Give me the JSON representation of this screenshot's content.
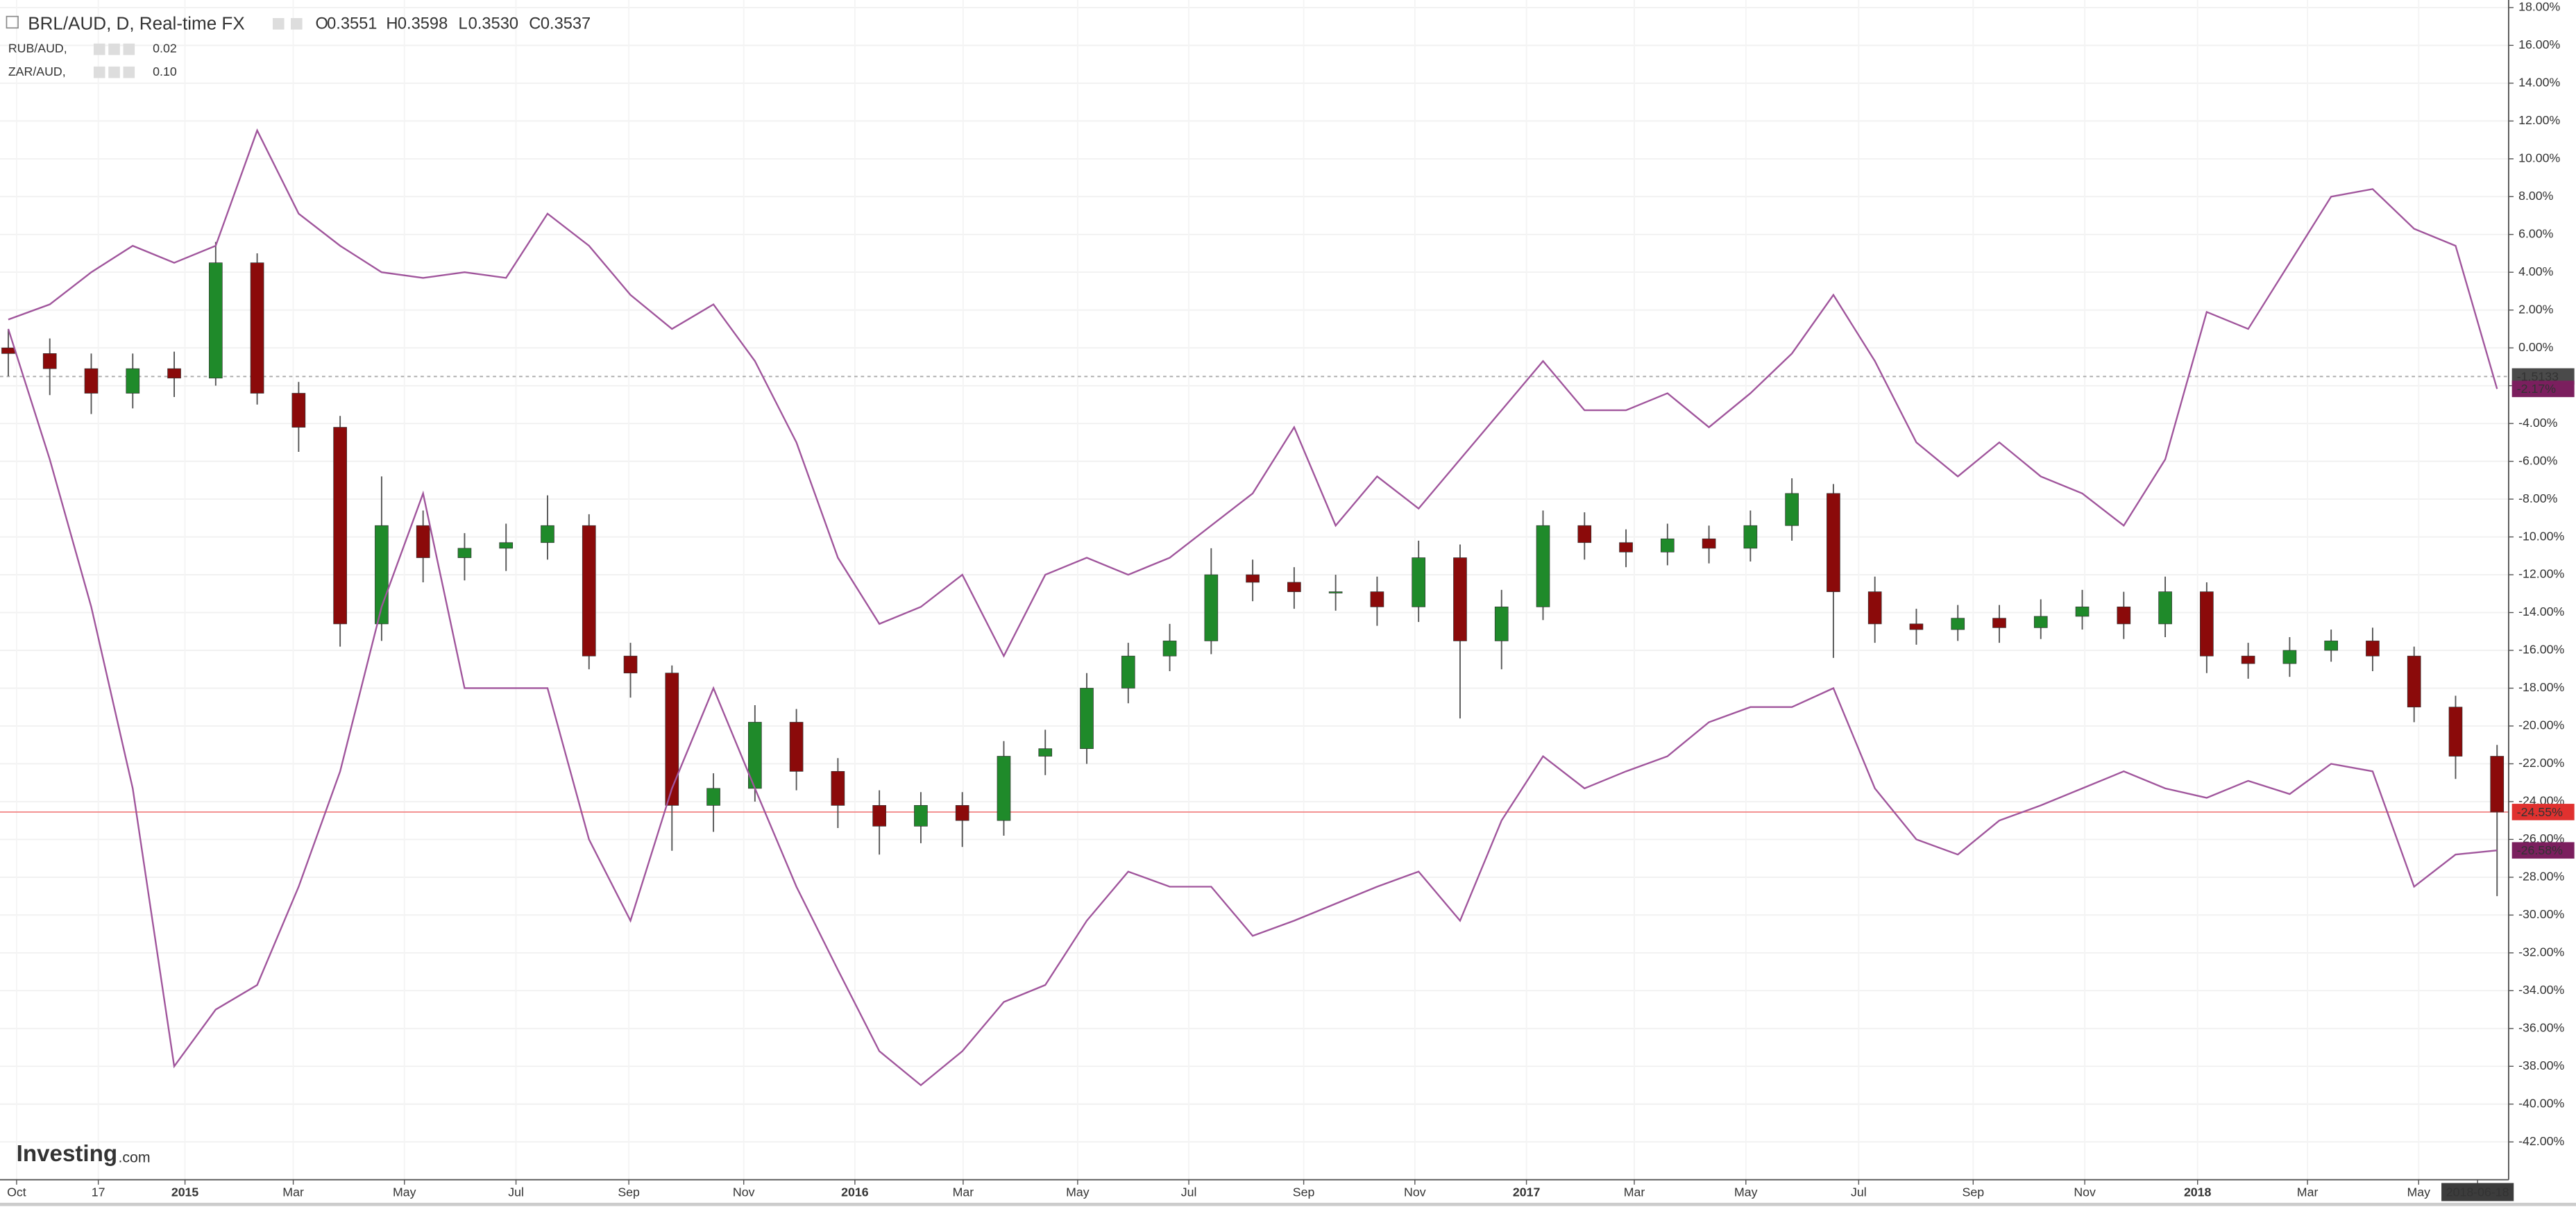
{
  "header": {
    "symbol": "BRL/AUD, D, Real-time FX",
    "ohlc": [
      {
        "label": "O",
        "value": "0.3551"
      },
      {
        "label": "H",
        "value": "0.3598"
      },
      {
        "label": "L",
        "value": "0.3530"
      },
      {
        "label": "C",
        "value": "0.3537"
      }
    ]
  },
  "watermark": [
    "Investing",
    ".com"
  ],
  "chart_data": {
    "type": "candlestick",
    "series": [
      {
        "name": "BRL/AUD",
        "type": "candlestick",
        "up_color": "#1f8a2a",
        "down_color": "#8b0a0a",
        "open": [
          0,
          -0.3,
          -1.1,
          -2.4,
          -1.1,
          -1.6,
          4.5,
          -2.4,
          -4.2,
          -14.6,
          -9.4,
          -11.1,
          -10.6,
          -10.3,
          -9.4,
          -16.3,
          -17.2,
          -24.2,
          -23.3,
          -19.8,
          -22.4,
          -24.2,
          -25.3,
          -24.2,
          -25,
          -21.6,
          -21.2,
          -18,
          -16.3,
          -15.5,
          -12,
          -12.4,
          -12.9,
          -12.9,
          -13.7,
          -11.1,
          -15.5,
          -13.7,
          -9.4,
          -10.3,
          -10.8,
          -10.1,
          -10.6,
          -9.4,
          -7.7,
          -12.9,
          -14.6,
          -14.9,
          -14.3,
          -14.8,
          -14.2,
          -13.7,
          -14.6,
          -12.9,
          -16.3,
          -16.7,
          -16,
          -15.5,
          -16.3,
          -19,
          -21.6
        ],
        "high": [
          1.0,
          0.5,
          -0.3,
          -0.3,
          -0.2,
          5.6,
          5.0,
          -1.8,
          -3.6,
          -6.8,
          -8.6,
          -9.8,
          -9.3,
          -7.8,
          -8.8,
          -15.6,
          -16.8,
          -22.5,
          -18.9,
          -19.1,
          -21.7,
          -23.4,
          -23.5,
          -23.5,
          -20.8,
          -20.2,
          -17.2,
          -15.6,
          -14.6,
          -10.6,
          -11.2,
          -11.6,
          -12.0,
          -12.1,
          -10.2,
          -10.4,
          -12.8,
          -8.6,
          -8.7,
          -9.6,
          -9.3,
          -9.4,
          -8.6,
          -6.9,
          -7.2,
          -12.1,
          -13.8,
          -13.6,
          -13.6,
          -13.3,
          -12.8,
          -12.9,
          -12.1,
          -12.4,
          -15.6,
          -15.3,
          -14.9,
          -14.8,
          -15.8,
          -18.4,
          -21.0
        ],
        "low": [
          -1.5,
          -2.5,
          -3.5,
          -3.2,
          -2.6,
          -2.0,
          -3.0,
          -5.5,
          -15.8,
          -15.5,
          -12.4,
          -12.3,
          -11.8,
          -11.2,
          -17.0,
          -18.5,
          -26.6,
          -25.6,
          -24.0,
          -23.4,
          -25.4,
          -26.8,
          -26.2,
          -26.4,
          -25.8,
          -22.6,
          -22.0,
          -18.8,
          -17.1,
          -16.2,
          -13.4,
          -13.8,
          -13.9,
          -14.7,
          -14.5,
          -19.6,
          -17.0,
          -14.4,
          -11.2,
          -11.6,
          -11.5,
          -11.4,
          -11.3,
          -10.2,
          -16.4,
          -15.6,
          -15.7,
          -15.5,
          -15.6,
          -15.4,
          -14.9,
          -15.4,
          -15.3,
          -17.2,
          -17.5,
          -17.4,
          -16.6,
          -17.1,
          -19.8,
          -22.8,
          -29.0
        ],
        "close": [
          -0.3,
          -1.1,
          -2.4,
          -1.1,
          -1.6,
          4.5,
          -2.4,
          -4.2,
          -14.6,
          -9.4,
          -11.1,
          -10.6,
          -10.3,
          -9.4,
          -16.3,
          -17.2,
          -24.2,
          -23.3,
          -19.8,
          -22.4,
          -24.2,
          -25.3,
          -24.2,
          -25,
          -21.6,
          -21.2,
          -18,
          -16.3,
          -15.5,
          -12,
          -12.4,
          -12.9,
          -12.9,
          -13.7,
          -11.1,
          -15.5,
          -13.7,
          -9.4,
          -10.3,
          -10.8,
          -10.1,
          -10.6,
          -9.4,
          -7.7,
          -12.9,
          -14.6,
          -14.9,
          -14.3,
          -14.8,
          -14.2,
          -13.7,
          -14.6,
          -12.9,
          -16.3,
          -16.7,
          -16,
          -15.5,
          -16.3,
          -19,
          -21.6,
          -24.55
        ]
      },
      {
        "name": "RUB/AUD,",
        "type": "line",
        "color": "#a0559c",
        "legend_value": "0.02",
        "values": [
          1,
          -5.9,
          -13.7,
          -23.3,
          -38,
          -35,
          -33.7,
          -28.5,
          -22.4,
          -13.7,
          -7.7,
          -18,
          -18,
          -18,
          -26,
          -30.3,
          -23.3,
          -18,
          -23.3,
          -28.5,
          -32.9,
          -37.2,
          -39,
          -37.2,
          -34.6,
          -33.7,
          -30.3,
          -27.7,
          -28.5,
          -28.5,
          -31.1,
          -30.3,
          -29.4,
          -28.5,
          -27.7,
          -30.3,
          -25,
          -21.6,
          -23.3,
          -22.4,
          -21.6,
          -19.8,
          -19,
          -19,
          -18,
          -23.3,
          -26,
          -26.8,
          -25,
          -24.2,
          -23.3,
          -22.4,
          -23.3,
          -23.8,
          -22.9,
          -23.6,
          -22,
          -22.4,
          -28.5,
          -26.8,
          -26.58
        ]
      },
      {
        "name": "ZAR/AUD,",
        "type": "line",
        "color": "#a0559c",
        "legend_value": "0.10",
        "values": [
          1.5,
          2.3,
          4,
          5.4,
          4.5,
          5.4,
          11.5,
          7.1,
          5.4,
          4,
          3.7,
          4,
          3.7,
          7.1,
          5.4,
          2.8,
          1,
          2.3,
          -0.7,
          -5,
          -11.1,
          -14.6,
          -13.7,
          -12,
          -16.3,
          -12,
          -11.1,
          -12,
          -11.1,
          -9.4,
          -7.7,
          -4.2,
          -9.4,
          -6.8,
          -8.5,
          -5.9,
          -3.3,
          -0.7,
          -3.3,
          -3.3,
          -2.4,
          -4.2,
          -2.4,
          -0.3,
          2.8,
          -0.7,
          -5,
          -6.8,
          -5,
          -6.8,
          -7.7,
          -9.4,
          -5.9,
          1.9,
          1,
          4.5,
          8,
          8.4,
          6.3,
          5.4,
          -2.17
        ]
      }
    ],
    "xlim": [
      -0.2,
      60.2
    ],
    "xticks": [
      {
        "value": 0.2,
        "label": "Oct"
      },
      {
        "value": 2.17,
        "label": "17"
      },
      {
        "value": 4.26,
        "label": "2015"
      },
      {
        "value": 6.87,
        "label": "Mar"
      },
      {
        "value": 9.55,
        "label": "May"
      },
      {
        "value": 12.24,
        "label": "Jul"
      },
      {
        "value": 14.96,
        "label": "Sep"
      },
      {
        "value": 17.73,
        "label": "Nov"
      },
      {
        "value": 20.41,
        "label": "2016"
      },
      {
        "value": 23.02,
        "label": "Mar"
      },
      {
        "value": 25.78,
        "label": "May"
      },
      {
        "value": 28.46,
        "label": "Jul"
      },
      {
        "value": 31.23,
        "label": "Sep"
      },
      {
        "value": 33.91,
        "label": "Nov"
      },
      {
        "value": 36.6,
        "label": "2017"
      },
      {
        "value": 39.2,
        "label": "Mar"
      },
      {
        "value": 41.89,
        "label": "May"
      },
      {
        "value": 44.61,
        "label": "Jul"
      },
      {
        "value": 47.37,
        "label": "Sep"
      },
      {
        "value": 50.06,
        "label": "Nov"
      },
      {
        "value": 52.78,
        "label": "2018"
      },
      {
        "value": 55.43,
        "label": "Mar"
      },
      {
        "value": 58.11,
        "label": "May"
      },
      {
        "value": 59.53,
        "label": "2018-06-18"
      }
    ],
    "ylim": [
      -44,
      18.4
    ],
    "yticks": [
      {
        "value": -42,
        "label": "-42.00%"
      },
      {
        "value": -40,
        "label": "-40.00%"
      },
      {
        "value": -38,
        "label": "-38.00%"
      },
      {
        "value": -36,
        "label": "-36.00%"
      },
      {
        "value": -34,
        "label": "-34.00%"
      },
      {
        "value": -32,
        "label": "-32.00%"
      },
      {
        "value": -30,
        "label": "-30.00%"
      },
      {
        "value": -28,
        "label": "-28.00%"
      },
      {
        "value": -26,
        "label": "-26.00%"
      },
      {
        "value": -24,
        "label": "-24.00%"
      },
      {
        "value": -22,
        "label": "-22.00%"
      },
      {
        "value": -20,
        "label": "-20.00%"
      },
      {
        "value": -18,
        "label": "-18.00%"
      },
      {
        "value": -16,
        "label": "-16.00%"
      },
      {
        "value": -14,
        "label": "-14.00%"
      },
      {
        "value": -12,
        "label": "-12.00%"
      },
      {
        "value": -10,
        "label": "-10.00%"
      },
      {
        "value": -8,
        "label": "-8.00%"
      },
      {
        "value": -6,
        "label": "-6.00%"
      },
      {
        "value": -4,
        "label": "-4.00%"
      },
      {
        "value": -2,
        "label": "-2.00%"
      },
      {
        "value": 0,
        "label": "0.00%"
      },
      {
        "value": 2,
        "label": "2.00%"
      },
      {
        "value": 4,
        "label": "4.00%"
      },
      {
        "value": 6,
        "label": "6.00%"
      },
      {
        "value": 8,
        "label": "8.00%"
      },
      {
        "value": 10,
        "label": "10.00%"
      },
      {
        "value": 12,
        "label": "12.00%"
      },
      {
        "value": 14,
        "label": "14.00%"
      },
      {
        "value": 16,
        "label": "16.00%"
      },
      {
        "value": 18,
        "label": "18.00%"
      }
    ],
    "grid": true,
    "badges": [
      {
        "value": -1.5133,
        "label": "-1.5133",
        "color": "#4a4a4a",
        "line": "dashed"
      },
      {
        "value": -2.17,
        "label": "-2.17%",
        "color": "#7b1f5e",
        "line": "none"
      },
      {
        "value": -24.55,
        "label": "-24.55%",
        "color": "#e0312f",
        "line": "solid"
      },
      {
        "value": -26.58,
        "label": "-26.58%",
        "color": "#7b1f5e",
        "line": "none"
      }
    ]
  }
}
